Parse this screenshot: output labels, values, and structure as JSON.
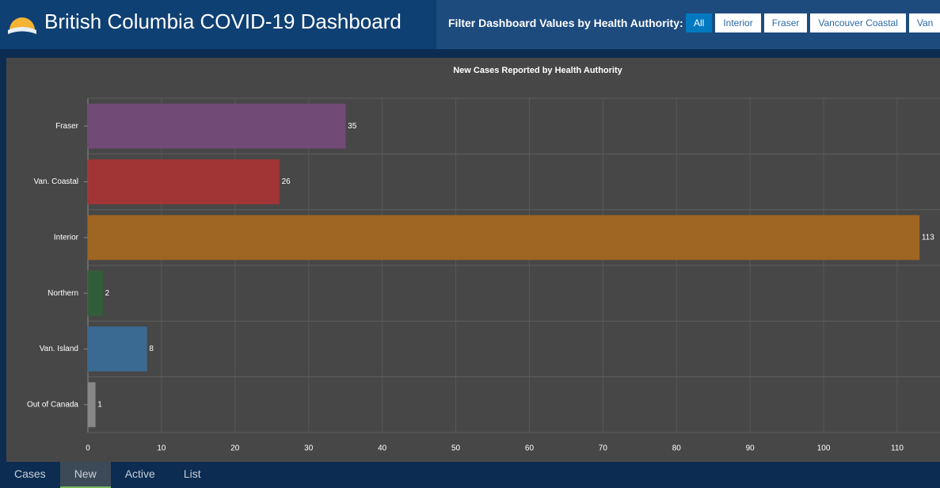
{
  "header": {
    "title": "British Columbia COVID-19 Dashboard"
  },
  "filter": {
    "label": "Filter Dashboard Values by Health Authority:",
    "options": [
      "All",
      "Interior",
      "Fraser",
      "Vancouver Coastal",
      "Van"
    ],
    "selected": "All"
  },
  "chart_data": {
    "type": "bar",
    "orientation": "horizontal",
    "title": "New Cases Reported by Health Authority",
    "categories": [
      "Fraser",
      "Van. Coastal",
      "Interior",
      "Northern",
      "Van. Island",
      "Out of Canada"
    ],
    "values": [
      35,
      26,
      113,
      2,
      8,
      1
    ],
    "colors": [
      "#754b79",
      "#a73536",
      "#a36722",
      "#30603a",
      "#3a6c97",
      "#8c8c8c"
    ],
    "xlim": [
      0,
      116
    ],
    "xticks": [
      0,
      10,
      20,
      30,
      40,
      50,
      60,
      70,
      80,
      90,
      100,
      110
    ],
    "grid": true
  },
  "tabs": {
    "items": [
      "Cases",
      "New",
      "Active",
      "List"
    ],
    "selected": "New"
  }
}
